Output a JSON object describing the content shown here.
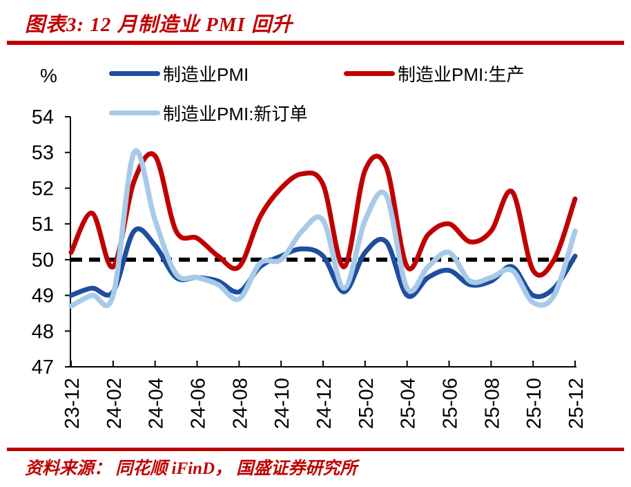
{
  "header": {
    "title": "图表3: 12 月制造业 PMI 回升"
  },
  "footer": {
    "source": "资料来源： 同花顺 iFinD， 国盛证券研究所"
  },
  "colors": {
    "accent_red": "#C00000",
    "axis_black": "#000000",
    "series_pmi_blue": "#1F4E9F",
    "series_production_red": "#C00000",
    "series_new_orders_lightblue": "#A8CAE9"
  },
  "chart_data": {
    "type": "line",
    "title": "12 月制造业 PMI 回升",
    "unit_label": "%",
    "ylabel": "",
    "xlabel": "",
    "ylim": [
      47,
      54
    ],
    "y_ticks": [
      47,
      48,
      49,
      50,
      51,
      52,
      53,
      54
    ],
    "grid": false,
    "legend_position": "top",
    "reference_line": {
      "value": 50.0,
      "style": "dashed",
      "color": "#000000"
    },
    "x": [
      "23-12",
      "24-01",
      "24-02",
      "24-03",
      "24-04",
      "24-05",
      "24-06",
      "24-07",
      "24-08",
      "24-09",
      "24-10",
      "24-11",
      "24-12",
      "25-01",
      "25-02",
      "25-03",
      "25-04",
      "25-05",
      "25-06",
      "25-07",
      "25-08",
      "25-09",
      "25-10",
      "25-11",
      "25-12"
    ],
    "x_tick_labels": [
      "23-12",
      "24-02",
      "24-04",
      "24-06",
      "24-08",
      "24-10",
      "24-12",
      "25-02",
      "25-04",
      "25-06",
      "25-08",
      "25-10",
      "25-12"
    ],
    "series": [
      {
        "name": "制造业PMI",
        "color": "#1F4E9F",
        "values": [
          49.0,
          49.2,
          49.1,
          50.8,
          50.4,
          49.5,
          49.5,
          49.4,
          49.1,
          49.8,
          50.1,
          50.3,
          50.1,
          49.1,
          50.2,
          50.5,
          49.0,
          49.5,
          49.7,
          49.3,
          49.4,
          49.8,
          49.0,
          49.2,
          50.1
        ]
      },
      {
        "name": "制造业PMI:生产",
        "color": "#C00000",
        "values": [
          50.2,
          51.3,
          49.8,
          52.2,
          52.9,
          50.8,
          50.6,
          50.1,
          49.8,
          51.2,
          52.0,
          52.4,
          52.1,
          49.8,
          52.5,
          52.6,
          49.8,
          50.7,
          51.0,
          50.5,
          50.8,
          51.9,
          49.7,
          50.0,
          51.7
        ]
      },
      {
        "name": "制造业PMI:新订单",
        "color": "#A8CAE9",
        "values": [
          48.7,
          49.0,
          49.0,
          53.0,
          51.1,
          49.6,
          49.5,
          49.3,
          48.9,
          49.9,
          50.0,
          50.8,
          51.1,
          49.2,
          51.1,
          51.8,
          49.2,
          49.8,
          50.2,
          49.4,
          49.5,
          49.7,
          48.8,
          49.0,
          50.8
        ]
      }
    ]
  }
}
